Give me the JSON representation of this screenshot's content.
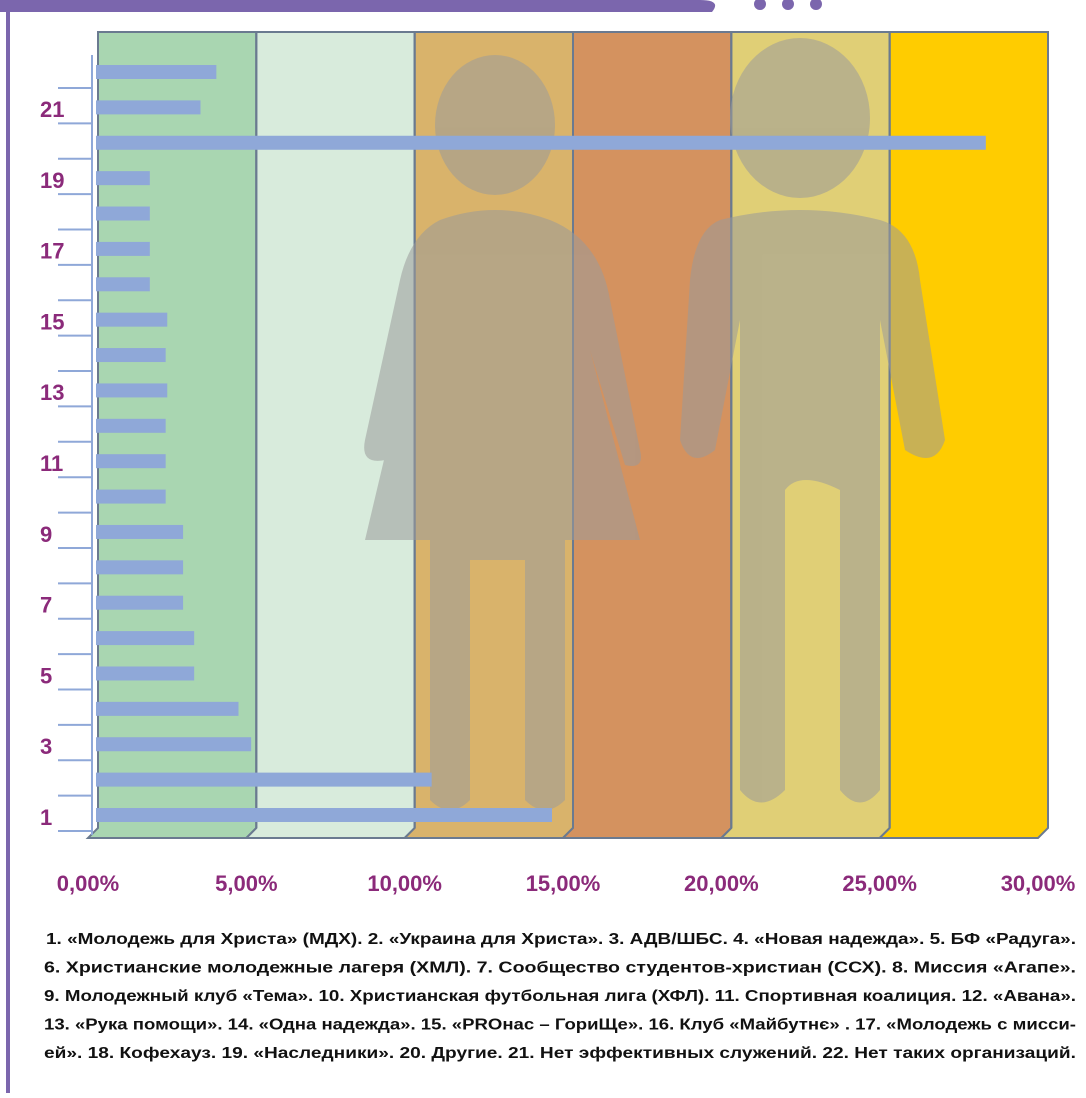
{
  "chart_data": {
    "type": "hbar",
    "categories": [
      "1",
      null,
      "3",
      null,
      "5",
      null,
      "7",
      null,
      "9",
      null,
      "11",
      null,
      "13",
      null,
      "15",
      null,
      "17",
      null,
      "19",
      null,
      "21",
      null
    ],
    "values": [
      14.4,
      10.6,
      4.9,
      4.5,
      3.1,
      3.1,
      2.75,
      2.75,
      2.75,
      2.2,
      2.2,
      2.2,
      2.25,
      2.2,
      2.25,
      1.7,
      1.7,
      1.7,
      1.7,
      28.1,
      3.3,
      3.8
    ],
    "color": "#8fa8d8",
    "xlim": [
      0,
      30
    ],
    "xticks": [
      {
        "value": 0,
        "label": "0,00%"
      },
      {
        "value": 5,
        "label": "5,00%"
      },
      {
        "value": 10,
        "label": "10,00%"
      },
      {
        "value": 15,
        "label": "15,00%"
      },
      {
        "value": 20,
        "label": "20,00%"
      },
      {
        "value": 25,
        "label": "25,00%"
      },
      {
        "value": 30,
        "label": "30,00%"
      }
    ],
    "band_colors": [
      "#a9d6b1",
      "#d8ebdc",
      "#d9b36b",
      "#d4925f",
      "#e0cf76",
      "#ffcc00"
    ],
    "notes": [
      "1.  «Молодежь для Христа» (МДХ). 2. «Украина для Христа». 3. АДВ/ШБС. 4. «Новая надежда». 5. БФ «Радуга».",
      "6. Христианские молодежные лагеря (ХМЛ). 7. Сообщество студентов-христиан (ССХ). 8. Миссия «Агапе».",
      "9. Молодежный клуб «Тема». 10. Христианская футбольная лига (ХФЛ). 11. Спортивная коалиция. 12. «Авана».",
      "13. «Рука помощи». 14. «Одна надежда». 15. «PROнас – ГориЩе». 16. Клуб «Майбутнє» . 17. «Молодежь с мисси-",
      "ей». 18. Кофехауз. 19. «Наследники». 20. Другие. 21. Нет эффективных служений. 22. Нет таких организаций."
    ]
  }
}
